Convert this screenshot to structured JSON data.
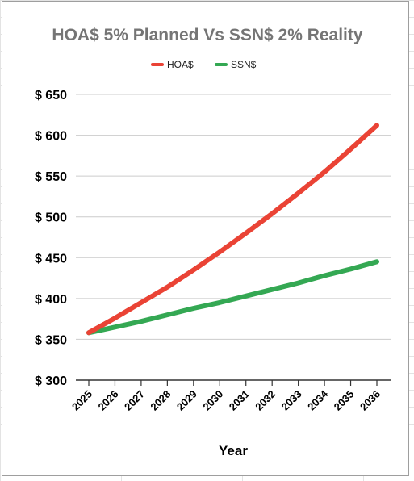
{
  "chart_data": {
    "type": "line",
    "title": "HOA$ 5% Planned Vs SSN$ 2% Reality",
    "xlabel": "Year",
    "ylabel": "",
    "categories": [
      "2025",
      "2026",
      "2027",
      "2028",
      "2029",
      "2030",
      "2031",
      "2032",
      "2033",
      "2034",
      "2035",
      "2036"
    ],
    "ylim": [
      300,
      650
    ],
    "yticks": [
      300,
      350,
      400,
      450,
      500,
      550,
      600,
      650
    ],
    "ytick_labels": [
      "$ 300",
      "$ 350",
      "$ 400",
      "$ 450",
      "$ 500",
      "$ 550",
      "$ 600",
      "$ 650"
    ],
    "grid": "horizontal",
    "legend": "top-center",
    "series": [
      {
        "name": "HOA$",
        "color": "#ea4335",
        "values": [
          358,
          376,
          395,
          414,
          435,
          457,
          480,
          504,
          529,
          555,
          583,
          612
        ]
      },
      {
        "name": "SSN$",
        "color": "#34a853",
        "values": [
          358,
          365,
          372,
          380,
          388,
          395,
          403,
          411,
          419,
          428,
          436,
          445
        ]
      }
    ]
  }
}
